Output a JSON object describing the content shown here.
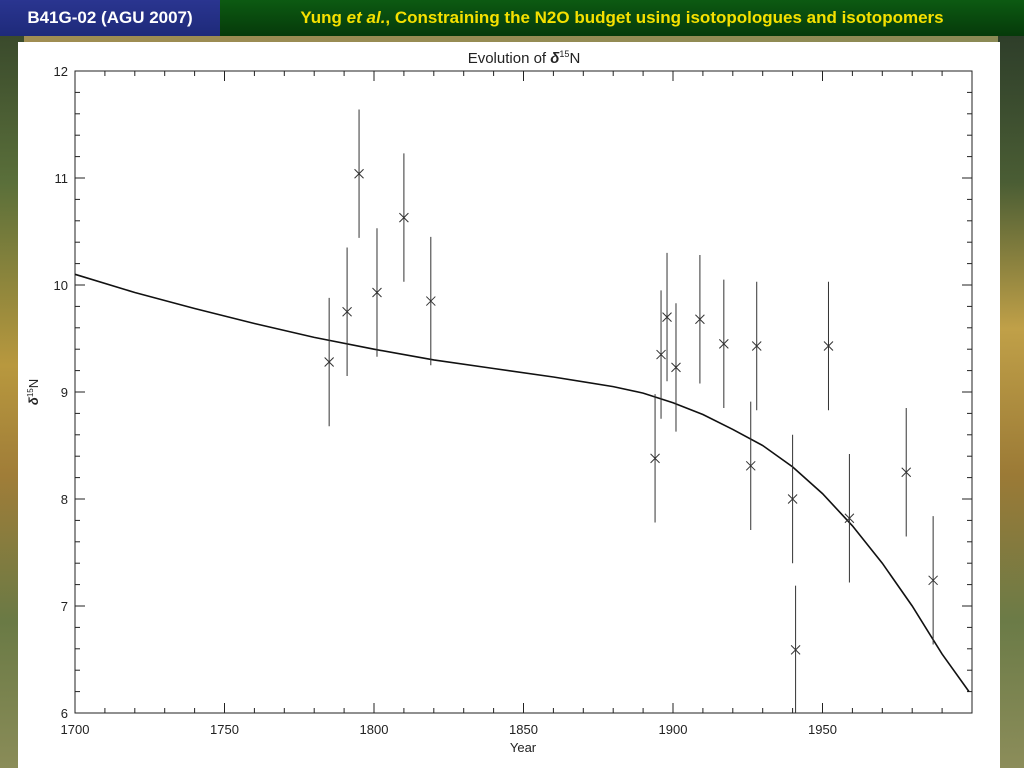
{
  "header": {
    "session_label": "B41G-02 (AGU 2007)",
    "title_author": "Yung",
    "title_etal": "et al.",
    "title_rest": ", Constraining the N2O budget using isotopologues and isotopomers"
  },
  "chart_data": {
    "type": "scatter",
    "title_prefix": "Evolution of ",
    "title_symbol": "δ",
    "title_superscript": "15",
    "title_suffix": "N",
    "xlabel": "Year",
    "ylabel_symbol": "δ",
    "ylabel_superscript": "15",
    "ylabel_suffix": "N",
    "xlim": [
      1700,
      2000
    ],
    "ylim": [
      6,
      12
    ],
    "xticks": [
      1700,
      1750,
      1800,
      1850,
      1900,
      1950
    ],
    "yticks": [
      6,
      7,
      8,
      9,
      10,
      11,
      12
    ],
    "grid": false,
    "series": [
      {
        "marker": "x",
        "points": [
          {
            "x": 1785,
            "y": 9.28,
            "err": 0.6
          },
          {
            "x": 1791,
            "y": 9.75,
            "err": 0.6
          },
          {
            "x": 1795,
            "y": 11.04,
            "err": 0.6
          },
          {
            "x": 1801,
            "y": 9.93,
            "err": 0.6
          },
          {
            "x": 1810,
            "y": 10.63,
            "err": 0.6
          },
          {
            "x": 1819,
            "y": 9.85,
            "err": 0.6
          },
          {
            "x": 1894,
            "y": 8.38,
            "err": 0.6
          },
          {
            "x": 1896,
            "y": 9.35,
            "err": 0.6
          },
          {
            "x": 1898,
            "y": 9.7,
            "err": 0.6
          },
          {
            "x": 1901,
            "y": 9.23,
            "err": 0.6
          },
          {
            "x": 1909,
            "y": 9.68,
            "err": 0.6
          },
          {
            "x": 1917,
            "y": 9.45,
            "err": 0.6
          },
          {
            "x": 1926,
            "y": 8.31,
            "err": 0.6
          },
          {
            "x": 1928,
            "y": 9.43,
            "err": 0.6
          },
          {
            "x": 1940,
            "y": 8.0,
            "err": 0.6
          },
          {
            "x": 1941,
            "y": 6.59,
            "err": 0.6
          },
          {
            "x": 1952,
            "y": 9.43,
            "err": 0.6
          },
          {
            "x": 1959,
            "y": 7.82,
            "err": 0.6
          },
          {
            "x": 1978,
            "y": 8.25,
            "err": 0.6
          },
          {
            "x": 1987,
            "y": 7.24,
            "err": 0.6
          }
        ]
      },
      {
        "marker": "line",
        "x": [
          1700,
          1720,
          1740,
          1760,
          1780,
          1800,
          1820,
          1840,
          1860,
          1880,
          1890,
          1900,
          1910,
          1920,
          1930,
          1940,
          1950,
          1960,
          1970,
          1980,
          1990,
          1999
        ],
        "y": [
          10.1,
          9.93,
          9.78,
          9.64,
          9.51,
          9.4,
          9.3,
          9.22,
          9.14,
          9.05,
          8.99,
          8.9,
          8.79,
          8.65,
          8.5,
          8.3,
          8.05,
          7.75,
          7.4,
          7.0,
          6.55,
          6.2
        ]
      }
    ]
  }
}
